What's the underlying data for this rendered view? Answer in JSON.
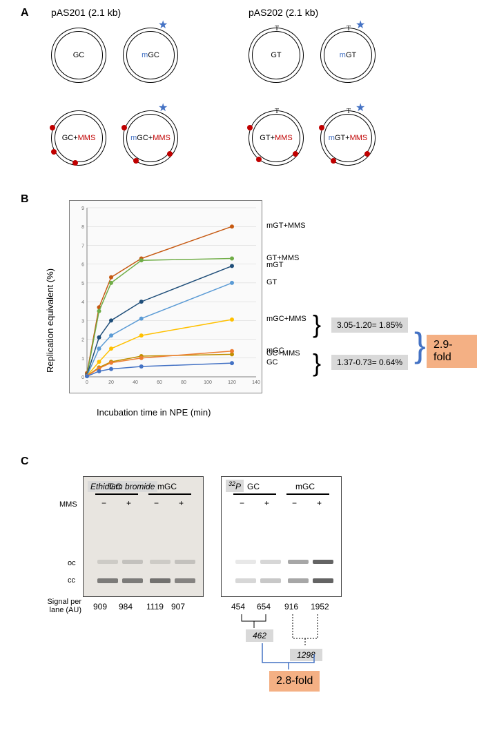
{
  "panelA": {
    "label": "A",
    "group_left": {
      "title": "pAS201 (2.1 kb)"
    },
    "group_right": {
      "title": "pAS202 (2.1 kb)"
    },
    "plasmids": {
      "gc": {
        "text": "GC"
      },
      "mgc": {
        "m": "m",
        "text": "GC"
      },
      "gt": {
        "text": "GT"
      },
      "mgt": {
        "m": "m",
        "text": "GT"
      },
      "gc_mms": {
        "text": "GC",
        "plus": "+",
        "mms": "MMS"
      },
      "mgc_mms": {
        "m": "m",
        "text": "GC",
        "plus": "+",
        "mms": "MMS"
      },
      "gt_mms": {
        "text": "GT",
        "plus": "+",
        "mms": "MMS"
      },
      "mgt_mms": {
        "m": "m",
        "text": "GT",
        "plus": "+",
        "mms": "MMS"
      }
    }
  },
  "panelB": {
    "label": "B",
    "chart": {
      "type": "line",
      "background_color": "#fbfbfb",
      "grid_color": "#d0d0d0",
      "xlim": [
        0,
        140
      ],
      "ylim": [
        0,
        9
      ],
      "xtick_step": 20,
      "ytick_step": 1,
      "line_width": 1.5,
      "marker_size": 3,
      "series": [
        {
          "name": "mGT+MMS",
          "label": "mGT+MMS",
          "color": "#C65911",
          "x": [
            0,
            10,
            20,
            45,
            120
          ],
          "y": [
            0.2,
            3.7,
            5.3,
            6.3,
            8.0
          ]
        },
        {
          "name": "GT+MMS",
          "label": "GT+MMS",
          "color": "#70AD47",
          "x": [
            0,
            10,
            20,
            45,
            120
          ],
          "y": [
            0.1,
            3.5,
            5.0,
            6.2,
            6.3
          ]
        },
        {
          "name": "mGT",
          "label": "mGT",
          "color": "#1F4E79",
          "x": [
            0,
            10,
            20,
            45,
            120
          ],
          "y": [
            0.1,
            2.1,
            3.0,
            4.0,
            5.9
          ]
        },
        {
          "name": "GT",
          "label": "GT",
          "color": "#5B9BD5",
          "x": [
            0,
            10,
            20,
            45,
            120
          ],
          "y": [
            0.05,
            1.5,
            2.2,
            3.1,
            5.0
          ]
        },
        {
          "name": "mGC+MMS",
          "label": "mGC+MMS",
          "color": "#FFC000",
          "x": [
            0,
            10,
            20,
            45,
            120
          ],
          "y": [
            0.05,
            0.8,
            1.5,
            2.2,
            3.05
          ]
        },
        {
          "name": "GC+MMS",
          "label": "GC+MMS",
          "color": "#BF9000",
          "x": [
            0,
            10,
            20,
            45,
            120
          ],
          "y": [
            0.05,
            0.5,
            0.8,
            1.1,
            1.2
          ]
        },
        {
          "name": "mGC",
          "label": "mGC",
          "color": "#ED7D31",
          "x": [
            0,
            10,
            20,
            45,
            120
          ],
          "y": [
            0.05,
            0.45,
            0.75,
            1.0,
            1.37
          ]
        },
        {
          "name": "GC",
          "label": "GC",
          "color": "#4472C4",
          "x": [
            0,
            10,
            20,
            45,
            120
          ],
          "y": [
            0.03,
            0.3,
            0.42,
            0.55,
            0.73
          ]
        }
      ]
    },
    "yaxis": "Replication equivalent (%)",
    "xaxis": "Incubation time in NPE (min)",
    "calc1": "3.05-1.20= 1.85%",
    "calc2": "1.37-0.73= 0.64%",
    "fold": "2.9-fold"
  },
  "panelC": {
    "label": "C",
    "left_title": "Ethidium bromide",
    "right_title": "32P",
    "col_gc": "GC",
    "col_mgc": "mGC",
    "mms_label": "MMS",
    "minus": "−",
    "plus": "+",
    "band_oc": "oc",
    "band_cc": "cc",
    "signal_label": "Signal per lane (AU)",
    "left_values": [
      "909",
      "984",
      "1119",
      "907"
    ],
    "right_values": [
      "454",
      "654",
      "916",
      "1952"
    ],
    "calc1": "462",
    "calc2": "1298",
    "fold": "2.8-fold",
    "gel_left": {
      "bg": "#EDEAE5",
      "bands_oc": [
        {
          "x": 20,
          "op": 0.15
        },
        {
          "x": 56,
          "op": 0.2
        },
        {
          "x": 96,
          "op": 0.15
        },
        {
          "x": 132,
          "op": 0.2
        }
      ],
      "bands_cc": [
        {
          "x": 20,
          "op": 0.6
        },
        {
          "x": 56,
          "op": 0.6
        },
        {
          "x": 96,
          "op": 0.65
        },
        {
          "x": 132,
          "op": 0.55
        }
      ],
      "band_color": "#333333"
    },
    "gel_right": {
      "bg": "#ffffff",
      "edge": "#ffffff",
      "bands_oc": [
        {
          "x": 20,
          "op": 0.1
        },
        {
          "x": 56,
          "op": 0.18
        },
        {
          "x": 96,
          "op": 0.4
        },
        {
          "x": 132,
          "op": 0.7
        }
      ],
      "bands_cc": [
        {
          "x": 20,
          "op": 0.18
        },
        {
          "x": 56,
          "op": 0.25
        },
        {
          "x": 96,
          "op": 0.4
        },
        {
          "x": 132,
          "op": 0.7
        }
      ],
      "band_color": "#222222"
    }
  }
}
